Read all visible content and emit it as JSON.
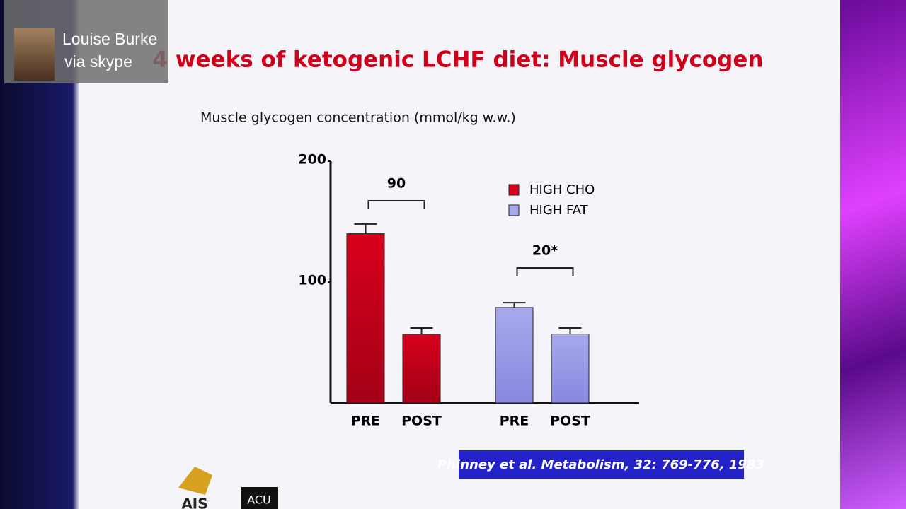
{
  "overlay": {
    "name": "Louise Burke",
    "via": "via skype"
  },
  "slide_title": "4 weeks of ketogenic LCHF diet: Muscle glycogen",
  "chart_data": {
    "type": "bar",
    "y_label": "Muscle glycogen concentration (mmol/kg w.w.)",
    "categories": [
      "PRE",
      "POST"
    ],
    "series": [
      {
        "name": "HIGH CHO",
        "color": "#d8001c",
        "values": [
          140,
          57
        ],
        "errors": [
          8,
          5
        ],
        "annotation": "90"
      },
      {
        "name": "HIGH FAT",
        "color": "#a8a8ec",
        "values": [
          79,
          57
        ],
        "errors": [
          4,
          5
        ],
        "annotation": "20*"
      }
    ],
    "ylim": [
      0,
      200
    ],
    "yticks": [
      100,
      200
    ],
    "grid": false,
    "legend": "upper right"
  },
  "citation": "Phinney et al. Metabolism, 32: 769-776, 1983",
  "logos": [
    "AIS",
    "ACU"
  ]
}
